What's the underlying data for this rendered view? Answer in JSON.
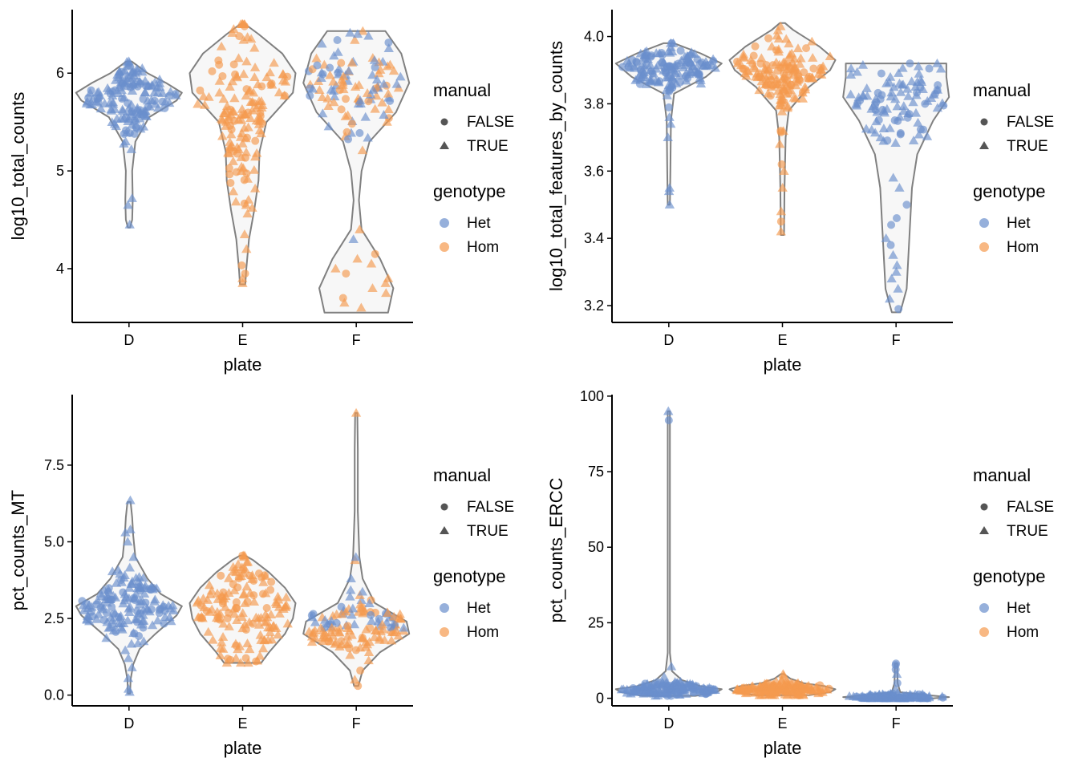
{
  "colors": {
    "Het": "#6a8fcc",
    "Hom": "#f59a4f",
    "violin_fill": "#f7f7f7",
    "violin_stroke": "#808080"
  },
  "legend": {
    "manual_title": "manual",
    "manual_items": [
      {
        "label": "FALSE",
        "shape": "circle"
      },
      {
        "label": "TRUE",
        "shape": "triangle"
      }
    ],
    "genotype_title": "genotype",
    "genotype_items": [
      {
        "label": "Het",
        "color": "#6a8fcc"
      },
      {
        "label": "Hom",
        "color": "#f59a4f"
      }
    ]
  },
  "chart_data": [
    {
      "type": "violin",
      "xlabel": "plate",
      "ylabel": "log10_total_counts",
      "categories": [
        "D",
        "E",
        "F"
      ],
      "genotype": {
        "D": "Het",
        "E": "Hom",
        "F": "mixed"
      },
      "ylim": [
        3.45,
        6.65
      ],
      "yticks": [
        {
          "v": 4,
          "label": "4"
        },
        {
          "v": 5,
          "label": "5"
        },
        {
          "v": 6,
          "label": "6"
        }
      ],
      "violins": {
        "D": [
          [
            4.42,
            0.02
          ],
          [
            4.5,
            0.06
          ],
          [
            4.7,
            0.07
          ],
          [
            5.0,
            0.06
          ],
          [
            5.3,
            0.12
          ],
          [
            5.55,
            0.38
          ],
          [
            5.72,
            0.9
          ],
          [
            5.8,
            1.0
          ],
          [
            5.9,
            0.7
          ],
          [
            6.0,
            0.35
          ],
          [
            6.12,
            0.05
          ]
        ],
        "E": [
          [
            3.84,
            0.05
          ],
          [
            4.0,
            0.07
          ],
          [
            4.3,
            0.12
          ],
          [
            4.6,
            0.22
          ],
          [
            4.9,
            0.3
          ],
          [
            5.2,
            0.32
          ],
          [
            5.5,
            0.45
          ],
          [
            5.8,
            0.95
          ],
          [
            6.0,
            1.0
          ],
          [
            6.2,
            0.75
          ],
          [
            6.4,
            0.3
          ],
          [
            6.5,
            0.05
          ]
        ],
        "F": [
          [
            3.55,
            0.6
          ],
          [
            3.8,
            0.7
          ],
          [
            4.1,
            0.45
          ],
          [
            4.4,
            0.1
          ],
          [
            4.7,
            0.05
          ],
          [
            5.0,
            0.1
          ],
          [
            5.3,
            0.25
          ],
          [
            5.6,
            0.75
          ],
          [
            5.9,
            1.0
          ],
          [
            6.2,
            0.85
          ],
          [
            6.43,
            0.55
          ]
        ]
      },
      "points": {
        "D": {
          "center": 5.75,
          "spread": 0.18,
          "n": 150,
          "tail": [
            4.45,
            4.65,
            4.72,
            5.22,
            5.3,
            5.45,
            6.1,
            6.08
          ]
        },
        "E": {
          "center": 5.6,
          "spread": 0.45,
          "n": 150,
          "tail": [
            3.85,
            3.9,
            3.95,
            4.35,
            4.2,
            6.45,
            6.48
          ]
        },
        "F": {
          "center": 5.85,
          "spread": 0.25,
          "n": 110,
          "tail": [
            3.6,
            3.65,
            3.7,
            3.75,
            3.8,
            3.85,
            3.9,
            3.95,
            4.0,
            4.05,
            4.1,
            4.15,
            4.3,
            4.4,
            6.4,
            6.38
          ]
        }
      }
    },
    {
      "type": "violin",
      "xlabel": "plate",
      "ylabel": "log10_total_features_by_counts",
      "categories": [
        "D",
        "E",
        "F"
      ],
      "genotype": {
        "D": "Het",
        "E": "Hom",
        "F": "Het"
      },
      "ylim": [
        3.15,
        4.08
      ],
      "yticks": [
        {
          "v": 3.2,
          "label": "3.2"
        },
        {
          "v": 3.4,
          "label": "3.4"
        },
        {
          "v": 3.6,
          "label": "3.6"
        },
        {
          "v": 3.8,
          "label": "3.8"
        },
        {
          "v": 4.0,
          "label": "4.0"
        }
      ],
      "violins": {
        "D": [
          [
            3.5,
            0.02
          ],
          [
            3.6,
            0.03
          ],
          [
            3.75,
            0.04
          ],
          [
            3.83,
            0.1
          ],
          [
            3.88,
            0.7
          ],
          [
            3.92,
            1.0
          ],
          [
            3.95,
            0.6
          ],
          [
            3.98,
            0.1
          ]
        ],
        "E": [
          [
            3.41,
            0.03
          ],
          [
            3.55,
            0.04
          ],
          [
            3.7,
            0.06
          ],
          [
            3.78,
            0.12
          ],
          [
            3.85,
            0.5
          ],
          [
            3.9,
            0.9
          ],
          [
            3.93,
            1.0
          ],
          [
            3.97,
            0.7
          ],
          [
            4.02,
            0.2
          ],
          [
            4.04,
            0.05
          ]
        ],
        "F": [
          [
            3.18,
            0.08
          ],
          [
            3.25,
            0.2
          ],
          [
            3.4,
            0.25
          ],
          [
            3.55,
            0.3
          ],
          [
            3.65,
            0.4
          ],
          [
            3.75,
            0.7
          ],
          [
            3.82,
            1.0
          ],
          [
            3.88,
            0.95
          ],
          [
            3.92,
            0.95
          ]
        ]
      },
      "points": {
        "D": {
          "center": 3.91,
          "spread": 0.03,
          "n": 150,
          "tail": [
            3.5,
            3.54,
            3.55,
            3.7,
            3.76,
            3.74,
            3.98
          ]
        },
        "E": {
          "center": 3.89,
          "spread": 0.06,
          "n": 150,
          "tail": [
            3.42,
            3.45,
            3.48,
            3.55,
            3.6,
            3.62,
            3.68,
            3.72,
            4.03
          ]
        },
        "F": {
          "center": 3.8,
          "spread": 0.06,
          "n": 100,
          "tail": [
            3.19,
            3.22,
            3.25,
            3.28,
            3.3,
            3.32,
            3.35,
            3.38,
            3.4,
            3.44,
            3.46,
            3.5,
            3.55,
            3.58
          ]
        }
      }
    },
    {
      "type": "violin",
      "xlabel": "plate",
      "ylabel": "pct_counts_MT",
      "categories": [
        "D",
        "E",
        "F"
      ],
      "genotype": {
        "D": "Het",
        "E": "Hom",
        "F": "mixed"
      },
      "ylim": [
        -0.35,
        9.8
      ],
      "yticks": [
        {
          "v": 0,
          "label": "0.0"
        },
        {
          "v": 2.5,
          "label": "2.5"
        },
        {
          "v": 5,
          "label": "5.0"
        },
        {
          "v": 7.5,
          "label": "7.5"
        }
      ],
      "violins": {
        "D": [
          [
            0.05,
            0.02
          ],
          [
            0.5,
            0.03
          ],
          [
            1.0,
            0.08
          ],
          [
            1.5,
            0.2
          ],
          [
            2.0,
            0.5
          ],
          [
            2.6,
            0.9
          ],
          [
            2.9,
            1.0
          ],
          [
            3.3,
            0.6
          ],
          [
            3.8,
            0.35
          ],
          [
            4.5,
            0.12
          ],
          [
            5.2,
            0.08
          ],
          [
            5.8,
            0.06
          ],
          [
            6.3,
            0.03
          ]
        ],
        "E": [
          [
            1.05,
            0.35
          ],
          [
            1.4,
            0.5
          ],
          [
            2.0,
            0.8
          ],
          [
            2.5,
            0.95
          ],
          [
            3.0,
            1.0
          ],
          [
            3.5,
            0.8
          ],
          [
            4.0,
            0.5
          ],
          [
            4.4,
            0.2
          ],
          [
            4.55,
            0.05
          ]
        ],
        "F": [
          [
            0.3,
            0.04
          ],
          [
            0.8,
            0.12
          ],
          [
            1.4,
            0.45
          ],
          [
            2.0,
            1.0
          ],
          [
            2.4,
            0.95
          ],
          [
            3.0,
            0.35
          ],
          [
            3.8,
            0.12
          ],
          [
            4.5,
            0.06
          ],
          [
            6.0,
            0.03
          ],
          [
            8.0,
            0.03
          ],
          [
            9.2,
            0.02
          ]
        ]
      },
      "points": {
        "D": {
          "center": 2.9,
          "spread": 0.55,
          "n": 150,
          "tail": [
            0.1,
            0.2,
            0.55,
            0.9,
            1.2,
            4.5,
            5.0,
            5.3,
            5.4,
            6.35
          ]
        },
        "E": {
          "center": 2.9,
          "spread": 0.8,
          "n": 150,
          "tail": [
            1.1,
            1.2,
            4.5,
            4.55
          ]
        },
        "F": {
          "center": 2.2,
          "spread": 0.45,
          "n": 130,
          "tail": [
            0.3,
            0.5,
            0.8,
            3.8,
            4.4,
            4.5,
            9.2
          ]
        }
      }
    },
    {
      "type": "violin",
      "xlabel": "plate",
      "ylabel": "pct_counts_ERCC",
      "categories": [
        "D",
        "E",
        "F"
      ],
      "genotype": {
        "D": "Het",
        "E": "Hom",
        "F": "Het"
      },
      "ylim": [
        -2.5,
        100.5
      ],
      "yticks": [
        {
          "v": 0,
          "label": "0"
        },
        {
          "v": 25,
          "label": "25"
        },
        {
          "v": 50,
          "label": "50"
        },
        {
          "v": 75,
          "label": "75"
        },
        {
          "v": 100,
          "label": "100"
        }
      ],
      "violins": {
        "D": [
          [
            0.8,
            0.5
          ],
          [
            2.0,
            0.9
          ],
          [
            3.0,
            1.0
          ],
          [
            4.0,
            0.6
          ],
          [
            6.0,
            0.25
          ],
          [
            9.0,
            0.06
          ],
          [
            15.0,
            0.02
          ],
          [
            40.0,
            0.02
          ],
          [
            70.0,
            0.02
          ],
          [
            95.0,
            0.02
          ]
        ],
        "E": [
          [
            1.0,
            0.5
          ],
          [
            2.0,
            0.9
          ],
          [
            3.0,
            1.0
          ],
          [
            4.0,
            0.8
          ],
          [
            5.0,
            0.4
          ],
          [
            6.5,
            0.15
          ],
          [
            8.0,
            0.03
          ]
        ],
        "F": [
          [
            0.0,
            0.7
          ],
          [
            0.4,
            1.0
          ],
          [
            1.0,
            0.6
          ],
          [
            2.0,
            0.08
          ],
          [
            5.0,
            0.03
          ],
          [
            11.5,
            0.02
          ]
        ]
      },
      "points": {
        "D": {
          "center": 3.0,
          "spread": 1.2,
          "n": 150,
          "tail": [
            10.5,
            92.0,
            95.0
          ]
        },
        "E": {
          "center": 3.0,
          "spread": 1.2,
          "n": 150,
          "tail": [
            7.5,
            8.0
          ]
        },
        "F": {
          "center": 0.4,
          "spread": 0.5,
          "n": 120,
          "tail": [
            3.0,
            5.0,
            8.0,
            9.5,
            11.0,
            11.5
          ]
        }
      }
    }
  ]
}
